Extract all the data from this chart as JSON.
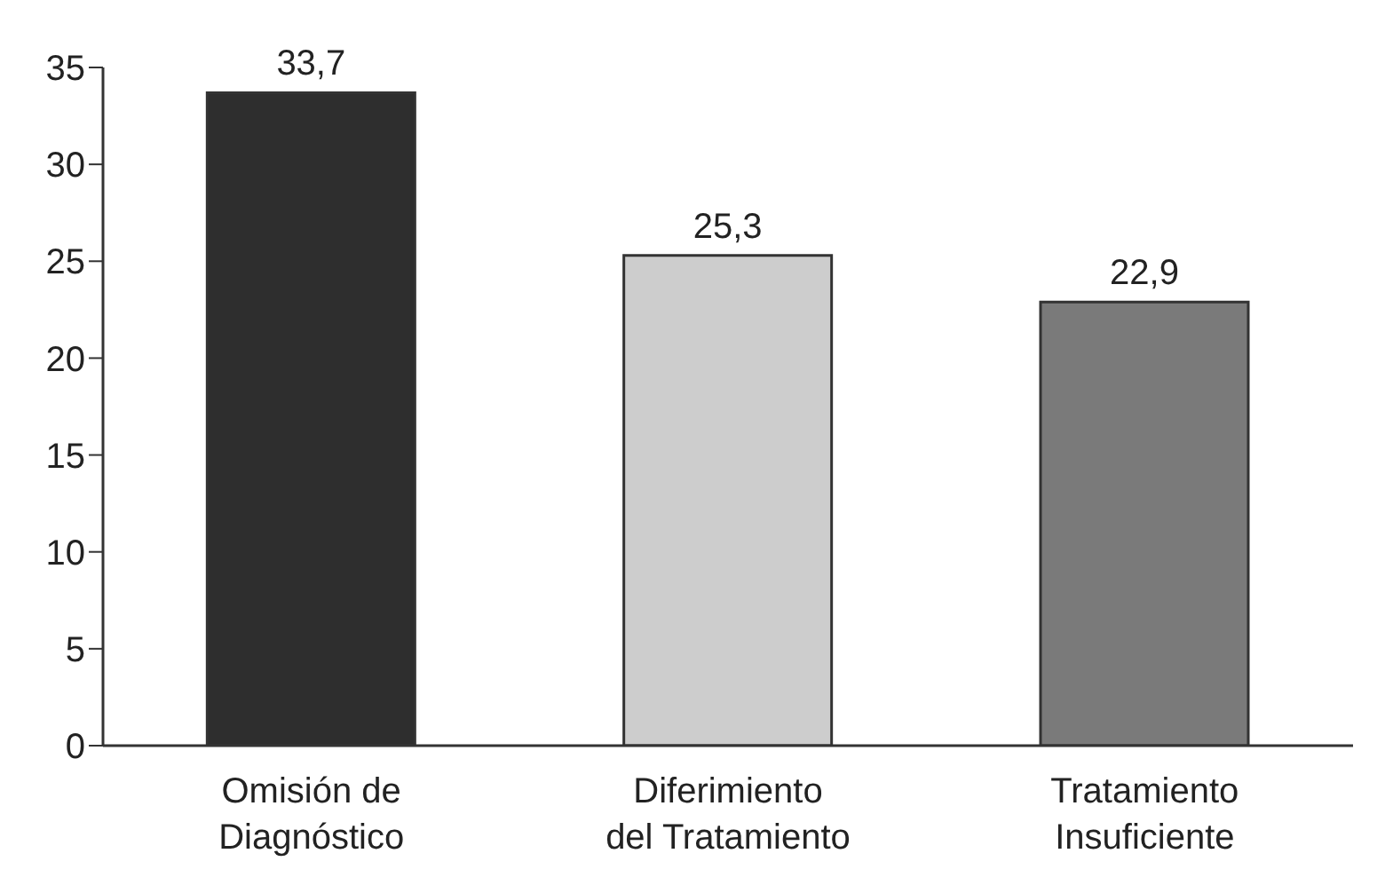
{
  "chart_data": {
    "type": "bar",
    "categories": [
      "Omisión de Diagnóstico",
      "Diferimiento del Tratamiento",
      "Tratamiento Insuficiente"
    ],
    "values": [
      33.7,
      25.3,
      22.9
    ],
    "colors": [
      "#2e2e2e",
      "#cdcdcd",
      "#7a7a7a"
    ],
    "value_labels": [
      "33,7",
      "25,3",
      "22,9"
    ],
    "ylim": [
      0,
      35
    ],
    "yticks": [
      0,
      5,
      10,
      15,
      20,
      25,
      30,
      35
    ],
    "grid": false
  }
}
